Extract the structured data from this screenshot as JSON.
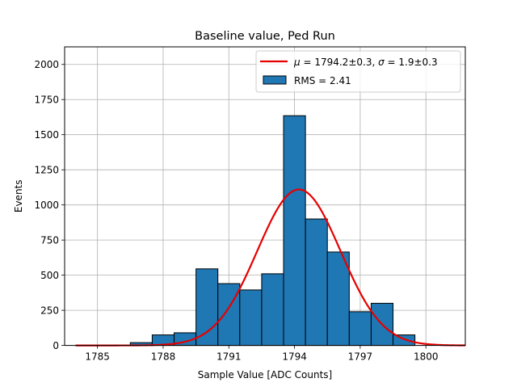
{
  "chart_data": {
    "type": "bar",
    "title": "Baseline value, Ped Run",
    "xlabel": "Sample Value [ADC Counts]",
    "ylabel": "Events",
    "xlim": [
      1783.5,
      1801.8
    ],
    "ylim": [
      0,
      2125
    ],
    "grid": true,
    "legend_position": "top-right",
    "bin_width": 1,
    "bins": [
      {
        "x": 1787.0,
        "count": 20
      },
      {
        "x": 1788.0,
        "count": 75
      },
      {
        "x": 1789.0,
        "count": 90
      },
      {
        "x": 1790.0,
        "count": 545
      },
      {
        "x": 1791.0,
        "count": 440
      },
      {
        "x": 1792.0,
        "count": 395
      },
      {
        "x": 1793.0,
        "count": 510
      },
      {
        "x": 1794.0,
        "count": 1635
      },
      {
        "x": 1795.0,
        "count": 900
      },
      {
        "x": 1796.0,
        "count": 665
      },
      {
        "x": 1797.0,
        "count": 240
      },
      {
        "x": 1798.0,
        "count": 300
      },
      {
        "x": 1799.0,
        "count": 75
      }
    ],
    "fit": {
      "type": "gaussian",
      "mu": 1794.2,
      "sigma": 1.9,
      "amplitude": 1110,
      "x_range": [
        1784.0,
        1801.8
      ]
    },
    "x_ticks": [
      1785,
      1788,
      1791,
      1794,
      1797,
      1800
    ],
    "y_ticks": [
      0,
      250,
      500,
      750,
      1000,
      1250,
      1500,
      1750,
      2000
    ],
    "legend": [
      {
        "label": "$\\mu=1794.2\\pm0.3$, $\\sigma=1.9\\pm0.3$",
        "mu_symbol": "μ",
        "mu_text": " = 1794.2±0.3, ",
        "sigma_symbol": "σ",
        "sigma_text": " = 1.9±0.3",
        "kind": "line",
        "color": "#e60000"
      },
      {
        "label": "RMS = 2.41",
        "kind": "patch",
        "color": "#1f77b4"
      }
    ],
    "colors": {
      "bar_fill": "#1f77b4",
      "bar_edge": "#000000",
      "fit_line": "#e60000",
      "grid": "#b0b0b0"
    }
  }
}
